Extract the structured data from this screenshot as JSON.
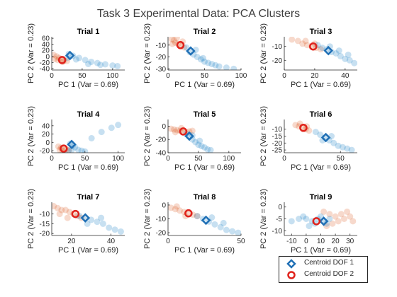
{
  "title": "Task 3 Experimental Data: PCA Clusters",
  "colors": {
    "dof1": "#0072BD",
    "dof2": "#D95319",
    "centroid1": "#1f6fb5",
    "centroid2": "#e0231c"
  },
  "legend": {
    "placement": "bottom-right",
    "items": [
      "Centroid DOF 1",
      "Centroid DOF 2"
    ]
  },
  "chart_data": [
    {
      "type": "scatter",
      "title": "Trial 1",
      "xlabel": "PC 1 (Var = 0.69)",
      "ylabel": "PC 2 (Var = 0.23)",
      "xlim": [
        0,
        120
      ],
      "ylim": [
        -45,
        65
      ],
      "xticks": [
        0,
        50,
        100
      ],
      "yticks": [
        -40,
        -20,
        0,
        20,
        40,
        60
      ],
      "centroid1": [
        30,
        3
      ],
      "centroid2": [
        17,
        -12
      ],
      "cluster1": [
        [
          28,
          8
        ],
        [
          35,
          2
        ],
        [
          45,
          -5
        ],
        [
          55,
          -12
        ],
        [
          65,
          -18
        ],
        [
          75,
          -22
        ],
        [
          88,
          -26
        ],
        [
          100,
          -30
        ],
        [
          108,
          -32
        ],
        [
          25,
          -5
        ],
        [
          40,
          -10
        ],
        [
          60,
          -25
        ],
        [
          80,
          -28
        ]
      ],
      "cluster2": [
        [
          3,
          5
        ],
        [
          8,
          0
        ],
        [
          12,
          -5
        ],
        [
          16,
          -10
        ],
        [
          20,
          -14
        ],
        [
          10,
          -12
        ],
        [
          5,
          -8
        ],
        [
          18,
          -18
        ],
        [
          25,
          -15
        ]
      ]
    },
    {
      "type": "scatter",
      "title": "Trial 2",
      "xlabel": "PC 1 (Var = 0.69)",
      "ylabel": "PC 2 (Var = 0.23)",
      "xlim": [
        0,
        100
      ],
      "ylim": [
        -31,
        -3
      ],
      "xticks": [
        0,
        50,
        100
      ],
      "yticks": [
        -30,
        -20,
        -10
      ],
      "centroid1": [
        31,
        -15
      ],
      "centroid2": [
        17,
        -10
      ],
      "cluster1": [
        [
          25,
          -12
        ],
        [
          30,
          -16
        ],
        [
          35,
          -18
        ],
        [
          40,
          -20
        ],
        [
          45,
          -22
        ],
        [
          50,
          -24
        ],
        [
          55,
          -25
        ],
        [
          60,
          -26
        ],
        [
          65,
          -27
        ],
        [
          70,
          -28
        ],
        [
          80,
          -29
        ],
        [
          90,
          -30
        ],
        [
          38,
          -14
        ],
        [
          48,
          -21
        ]
      ],
      "cluster2": [
        [
          5,
          -5
        ],
        [
          8,
          -6
        ],
        [
          10,
          -8
        ],
        [
          14,
          -9
        ],
        [
          18,
          -11
        ],
        [
          22,
          -12
        ],
        [
          12,
          -4
        ],
        [
          6,
          -9
        ],
        [
          20,
          -7
        ]
      ]
    },
    {
      "type": "scatter",
      "title": "Trial 3",
      "xlabel": "PC 1 (Var = 0.69)",
      "ylabel": "PC 2 (Var = 0.23)",
      "xlim": [
        0,
        48
      ],
      "ylim": [
        -27,
        -3
      ],
      "xticks": [
        0,
        20,
        40
      ],
      "yticks": [
        -20,
        -10
      ],
      "centroid1": [
        29,
        -13
      ],
      "centroid2": [
        19,
        -10
      ],
      "cluster1": [
        [
          22,
          -9
        ],
        [
          25,
          -11
        ],
        [
          28,
          -12
        ],
        [
          31,
          -14
        ],
        [
          34,
          -15
        ],
        [
          37,
          -17
        ],
        [
          40,
          -19
        ],
        [
          43,
          -20
        ],
        [
          46,
          -22
        ],
        [
          30,
          -10
        ],
        [
          36,
          -13
        ],
        [
          42,
          -16
        ]
      ],
      "cluster2": [
        [
          5,
          -5
        ],
        [
          9,
          -6
        ],
        [
          12,
          -8
        ],
        [
          15,
          -9
        ],
        [
          18,
          -10
        ],
        [
          21,
          -11
        ],
        [
          24,
          -12
        ],
        [
          14,
          -6
        ],
        [
          20,
          -8
        ]
      ]
    },
    {
      "type": "scatter",
      "title": "Trial 4",
      "xlabel": "PC 1 (Var = 0.69)",
      "ylabel": "PC 2 (Var = 0.23)",
      "xlim": [
        0,
        110
      ],
      "ylim": [
        -25,
        55
      ],
      "xticks": [
        0,
        50,
        100
      ],
      "yticks": [
        -20,
        0,
        20,
        40
      ],
      "centroid1": [
        30,
        -5
      ],
      "centroid2": [
        18,
        -15
      ],
      "cluster1": [
        [
          28,
          -3
        ],
        [
          32,
          -8
        ],
        [
          35,
          -12
        ],
        [
          40,
          -18
        ],
        [
          45,
          -20
        ],
        [
          50,
          -22
        ],
        [
          30,
          -18
        ],
        [
          25,
          -20
        ],
        [
          60,
          10
        ],
        [
          75,
          25
        ],
        [
          90,
          35
        ],
        [
          100,
          42
        ]
      ],
      "cluster2": [
        [
          10,
          -10
        ],
        [
          14,
          -13
        ],
        [
          18,
          -15
        ],
        [
          22,
          -17
        ],
        [
          26,
          -19
        ],
        [
          16,
          -20
        ],
        [
          12,
          -18
        ]
      ]
    },
    {
      "type": "scatter",
      "title": "Trial 5",
      "xlabel": "PC 1 (Var = 0.69)",
      "ylabel": "PC 2 (Var = 0.23)",
      "xlim": [
        0,
        120
      ],
      "ylim": [
        -40,
        10
      ],
      "xticks": [
        0,
        50,
        100
      ],
      "yticks": [
        -40,
        -20,
        0
      ],
      "centroid1": [
        35,
        -15
      ],
      "centroid2": [
        25,
        -8
      ],
      "cluster1": [
        [
          30,
          -12
        ],
        [
          35,
          -16
        ],
        [
          40,
          -20
        ],
        [
          45,
          -24
        ],
        [
          50,
          -28
        ],
        [
          55,
          -30
        ],
        [
          60,
          -32
        ],
        [
          65,
          -35
        ],
        [
          70,
          -36
        ],
        [
          40,
          -14
        ],
        [
          52,
          -22
        ]
      ],
      "cluster2": [
        [
          5,
          -4
        ],
        [
          10,
          -5
        ],
        [
          15,
          -6
        ],
        [
          20,
          -7
        ],
        [
          25,
          -8
        ],
        [
          30,
          -9
        ],
        [
          35,
          -8
        ],
        [
          40,
          -7
        ],
        [
          12,
          -9
        ],
        [
          22,
          -3
        ]
      ]
    },
    {
      "type": "scatter",
      "title": "Trial 6",
      "xlabel": "PC 1 (Var = 0.69)",
      "ylabel": "PC 2 (Var = 0.23)",
      "xlim": [
        0,
        65
      ],
      "ylim": [
        -27,
        -3
      ],
      "xticks": [
        0,
        50
      ],
      "yticks": [
        -25,
        -20,
        -15,
        -10
      ],
      "centroid1": [
        37,
        -16
      ],
      "centroid2": [
        17,
        -9
      ],
      "cluster1": [
        [
          28,
          -12
        ],
        [
          32,
          -14
        ],
        [
          36,
          -16
        ],
        [
          40,
          -18
        ],
        [
          44,
          -20
        ],
        [
          48,
          -22
        ],
        [
          52,
          -23
        ],
        [
          56,
          -24
        ],
        [
          60,
          -25
        ],
        [
          34,
          -18
        ],
        [
          42,
          -15
        ]
      ],
      "cluster2": [
        [
          10,
          -7
        ],
        [
          13,
          -8
        ],
        [
          16,
          -9
        ],
        [
          19,
          -10
        ],
        [
          22,
          -11
        ],
        [
          14,
          -6
        ],
        [
          20,
          -8
        ]
      ]
    },
    {
      "type": "scatter",
      "title": "Trial 7",
      "xlabel": "PC 1 (Var = 0.69)",
      "ylabel": "PC 2 (Var = 0.23)",
      "xlim": [
        10,
        47
      ],
      "ylim": [
        -21,
        -4
      ],
      "xticks": [
        20,
        40
      ],
      "yticks": [
        -20,
        -15,
        -10
      ],
      "centroid1": [
        27,
        -12
      ],
      "centroid2": [
        22,
        -10
      ],
      "cluster1": [
        [
          24,
          -11
        ],
        [
          27,
          -12
        ],
        [
          30,
          -13
        ],
        [
          33,
          -14
        ],
        [
          36,
          -15
        ],
        [
          39,
          -17
        ],
        [
          42,
          -18
        ],
        [
          45,
          -19
        ],
        [
          28,
          -15
        ],
        [
          35,
          -12
        ]
      ],
      "cluster2": [
        [
          11,
          -6
        ],
        [
          13,
          -7
        ],
        [
          15,
          -8
        ],
        [
          17,
          -8
        ],
        [
          19,
          -9
        ],
        [
          21,
          -10
        ],
        [
          23,
          -11
        ],
        [
          25,
          -12
        ],
        [
          14,
          -10
        ],
        [
          18,
          -12
        ]
      ]
    },
    {
      "type": "scatter",
      "title": "Trial 8",
      "xlabel": "PC 1 (Var = 0.69)",
      "ylabel": "PC 2 (Var = 0.23)",
      "xlim": [
        0,
        50
      ],
      "ylim": [
        -22,
        2
      ],
      "xticks": [
        0,
        50
      ],
      "yticks": [
        -20,
        -10,
        0
      ],
      "centroid1": [
        26,
        -11
      ],
      "centroid2": [
        14,
        -6
      ],
      "cluster1": [
        [
          20,
          -8
        ],
        [
          24,
          -10
        ],
        [
          28,
          -12
        ],
        [
          32,
          -14
        ],
        [
          36,
          -16
        ],
        [
          40,
          -18
        ],
        [
          44,
          -19
        ],
        [
          48,
          -20
        ],
        [
          30,
          -9
        ],
        [
          38,
          -13
        ]
      ],
      "cluster2": [
        [
          2,
          -2
        ],
        [
          5,
          -3
        ],
        [
          8,
          -4
        ],
        [
          11,
          -5
        ],
        [
          14,
          -6
        ],
        [
          17,
          -7
        ],
        [
          20,
          -8
        ],
        [
          6,
          -1
        ],
        [
          12,
          -8
        ]
      ]
    },
    {
      "type": "scatter",
      "title": "Trial 9",
      "xlabel": "PC 1 (Var = 0.69)",
      "ylabel": "PC 2 (Var = 0.23)",
      "xlim": [
        -15,
        35
      ],
      "ylim": [
        -12,
        2
      ],
      "xticks": [
        -10,
        0,
        10,
        20,
        30
      ],
      "yticks": [
        -10,
        -5,
        0
      ],
      "centroid1": [
        12,
        -6
      ],
      "centroid2": [
        7,
        -6
      ],
      "cluster1": [
        [
          0,
          -5
        ],
        [
          4,
          -6
        ],
        [
          8,
          -5
        ],
        [
          12,
          -6
        ],
        [
          14,
          -7
        ],
        [
          10,
          -4
        ],
        [
          6,
          -7
        ],
        [
          -5,
          -5
        ],
        [
          -10,
          -6
        ],
        [
          16,
          -5
        ],
        [
          2,
          -8
        ],
        [
          -2,
          -4
        ]
      ],
      "cluster2": [
        [
          12,
          -2
        ],
        [
          16,
          -3
        ],
        [
          20,
          -4
        ],
        [
          24,
          -3
        ],
        [
          28,
          -2
        ],
        [
          22,
          -6
        ],
        [
          26,
          -5
        ],
        [
          30,
          -4
        ],
        [
          18,
          -7
        ],
        [
          14,
          -8
        ],
        [
          32,
          -6
        ]
      ]
    }
  ]
}
